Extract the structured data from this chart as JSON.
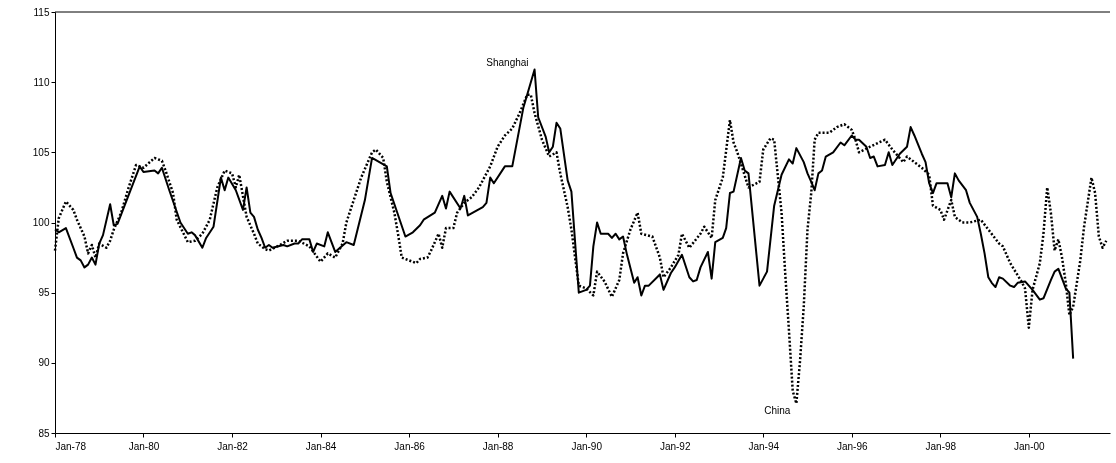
{
  "chart_data": {
    "type": "line",
    "marker": "none",
    "xlim": [
      "1978-01",
      "2001-11"
    ],
    "ylim": [
      85,
      115
    ],
    "yticks": [
      85,
      90,
      95,
      100,
      105,
      110,
      115
    ],
    "xticks": [
      {
        "value": "1978-01",
        "label": "Jan-78"
      },
      {
        "value": "1980-01",
        "label": "Jan-80"
      },
      {
        "value": "1982-01",
        "label": "Jan-82"
      },
      {
        "value": "1984-01",
        "label": "Jan-84"
      },
      {
        "value": "1986-01",
        "label": "Jan-86"
      },
      {
        "value": "1988-01",
        "label": "Jan-88"
      },
      {
        "value": "1990-01",
        "label": "Jan-90"
      },
      {
        "value": "1992-01",
        "label": "Jan-92"
      },
      {
        "value": "1994-01",
        "label": "Jan-94"
      },
      {
        "value": "1996-01",
        "label": "Jan-96"
      },
      {
        "value": "1998-01",
        "label": "Jan-98"
      },
      {
        "value": "2000-01",
        "label": "Jan-00"
      }
    ],
    "series": [
      {
        "name": "Shanghai",
        "color": "#000000",
        "line_style": "solid",
        "x": [
          "1978-01",
          "1978-02",
          "1978-04",
          "1978-06",
          "1978-07",
          "1978-08",
          "1978-09",
          "1978-10",
          "1978-11",
          "1978-12",
          "1979-01",
          "1979-02",
          "1979-04",
          "1979-05",
          "1979-06",
          "1979-12",
          "1980-01",
          "1980-04",
          "1980-05",
          "1980-06",
          "1980-08",
          "1980-11",
          "1981-01",
          "1981-02",
          "1981-03",
          "1981-05",
          "1981-06",
          "1981-08",
          "1981-10",
          "1981-11",
          "1981-12",
          "1982-02",
          "1982-04",
          "1982-05",
          "1982-06",
          "1982-07",
          "1982-08",
          "1982-09",
          "1982-10",
          "1982-11",
          "1982-12",
          "1983-03",
          "1983-04",
          "1983-06",
          "1983-07",
          "1983-08",
          "1983-10",
          "1983-11",
          "1983-12",
          "1984-02",
          "1984-03",
          "1984-05",
          "1984-08",
          "1984-10",
          "1985-01",
          "1985-03",
          "1985-07",
          "1985-08",
          "1985-12",
          "1986-02",
          "1986-04",
          "1986-05",
          "1986-08",
          "1986-10",
          "1986-11",
          "1986-12",
          "1987-03",
          "1987-04",
          "1987-05",
          "1987-09",
          "1987-10",
          "1987-11",
          "1987-12",
          "1988-03",
          "1988-05",
          "1988-08",
          "1988-09",
          "1988-11",
          "1988-12",
          "1989-02",
          "1989-03",
          "1989-04",
          "1989-05",
          "1989-06",
          "1989-08",
          "1989-09",
          "1989-11",
          "1990-01",
          "1990-02",
          "1990-03",
          "1990-04",
          "1990-05",
          "1990-07",
          "1990-08",
          "1990-09",
          "1990-10",
          "1990-11",
          "1990-12",
          "1991-02",
          "1991-03",
          "1991-04",
          "1991-05",
          "1991-06",
          "1991-09",
          "1991-10",
          "1991-12",
          "1992-01",
          "1992-03",
          "1992-05",
          "1992-06",
          "1992-07",
          "1992-08",
          "1992-10",
          "1992-11",
          "1992-12",
          "1993-02",
          "1993-03",
          "1993-04",
          "1993-05",
          "1993-07",
          "1993-08",
          "1993-09",
          "1993-12",
          "1994-02",
          "1994-04",
          "1994-06",
          "1994-08",
          "1994-09",
          "1994-10",
          "1994-12",
          "1995-01",
          "1995-02",
          "1995-03",
          "1995-04",
          "1995-05",
          "1995-06",
          "1995-08",
          "1995-10",
          "1995-11",
          "1996-01",
          "1996-02",
          "1996-03",
          "1996-05",
          "1996-06",
          "1996-07",
          "1996-08",
          "1996-10",
          "1996-11",
          "1996-12",
          "1997-02",
          "1997-04",
          "1997-05",
          "1997-06",
          "1997-08",
          "1997-09",
          "1997-10",
          "1997-11",
          "1997-12",
          "1998-03",
          "1998-04",
          "1998-05",
          "1998-06",
          "1998-08",
          "1998-09",
          "1998-11",
          "1998-12",
          "1999-01",
          "1999-02",
          "1999-03",
          "1999-04",
          "1999-05",
          "1999-06",
          "1999-08",
          "1999-09",
          "1999-10",
          "1999-12",
          "2000-02",
          "2000-04",
          "2000-05",
          "2000-07",
          "2000-08",
          "2000-09",
          "2000-11",
          "2000-12",
          "2001-01"
        ],
        "values": [
          99.5,
          99.3,
          99.6,
          98.2,
          97.5,
          97.3,
          96.8,
          97.0,
          97.5,
          97.0,
          98.5,
          99.1,
          101.3,
          99.8,
          99.9,
          104.0,
          103.6,
          103.7,
          103.5,
          103.9,
          102.3,
          100.0,
          99.2,
          99.3,
          99.1,
          98.2,
          98.9,
          99.7,
          103.2,
          102.3,
          103.2,
          102.3,
          100.9,
          102.5,
          100.7,
          100.4,
          99.5,
          98.9,
          98.2,
          98.4,
          98.2,
          98.4,
          98.3,
          98.5,
          98.5,
          98.8,
          98.8,
          97.9,
          98.5,
          98.3,
          99.3,
          97.9,
          98.6,
          98.4,
          101.6,
          104.6,
          104.0,
          102.1,
          99.0,
          99.3,
          99.8,
          100.2,
          100.7,
          101.9,
          101.0,
          102.2,
          101.0,
          101.9,
          100.5,
          101.1,
          101.4,
          103.2,
          102.8,
          104.0,
          104.0,
          108.2,
          109.1,
          110.9,
          107.5,
          106.1,
          105.0,
          105.4,
          107.1,
          106.7,
          103.0,
          102.2,
          95.0,
          95.2,
          95.5,
          98.3,
          100.0,
          99.2,
          99.2,
          98.9,
          99.2,
          98.8,
          99.0,
          97.8,
          95.7,
          96.1,
          94.8,
          95.5,
          95.5,
          96.3,
          95.2,
          96.4,
          96.8,
          97.7,
          96.1,
          95.8,
          95.9,
          96.8,
          97.9,
          96.0,
          98.6,
          98.9,
          99.6,
          102.1,
          102.2,
          104.6,
          103.7,
          103.5,
          95.5,
          96.5,
          101.2,
          103.4,
          104.5,
          104.2,
          105.3,
          104.3,
          103.5,
          102.9,
          102.3,
          103.5,
          103.7,
          104.7,
          105.0,
          105.7,
          105.5,
          106.2,
          105.9,
          105.9,
          105.4,
          104.6,
          104.7,
          104.0,
          104.1,
          105.0,
          104.1,
          104.9,
          105.4,
          106.8,
          106.2,
          104.9,
          104.3,
          102.8,
          102.1,
          102.8,
          102.8,
          101.8,
          103.5,
          103.0,
          102.3,
          101.4,
          100.4,
          99.2,
          97.8,
          96.1,
          95.7,
          95.4,
          96.1,
          96.0,
          95.5,
          95.4,
          95.7,
          95.8,
          95.2,
          94.5,
          94.6,
          95.9,
          96.5,
          96.7,
          95.3,
          95.0,
          90.3
        ]
      },
      {
        "name": "China",
        "color": "#000000",
        "line_style": "dotted",
        "x": [
          "1978-01",
          "1978-02",
          "1978-04",
          "1978-06",
          "1978-07",
          "1978-09",
          "1978-10",
          "1978-11",
          "1978-12",
          "1979-01",
          "1979-03",
          "1979-04",
          "1979-05",
          "1979-07",
          "1979-09",
          "1979-11",
          "1980-01",
          "1980-04",
          "1980-06",
          "1980-07",
          "1980-09",
          "1980-10",
          "1981-01",
          "1981-03",
          "1981-05",
          "1981-07",
          "1981-09",
          "1981-11",
          "1982-01",
          "1982-02",
          "1982-03",
          "1982-05",
          "1982-07",
          "1982-08",
          "1982-10",
          "1982-11",
          "1983-02",
          "1983-04",
          "1983-07",
          "1983-10",
          "1984-01",
          "1984-03",
          "1984-05",
          "1984-07",
          "1984-08",
          "1984-10",
          "1984-12",
          "1985-03",
          "1985-04",
          "1985-06",
          "1985-07",
          "1985-09",
          "1985-10",
          "1985-11",
          "1986-01",
          "1986-03",
          "1986-04",
          "1986-06",
          "1986-07",
          "1986-09",
          "1986-10",
          "1986-11",
          "1987-01",
          "1987-02",
          "1987-04",
          "1987-06",
          "1987-08",
          "1987-11",
          "1988-01",
          "1988-03",
          "1988-05",
          "1988-07",
          "1988-09",
          "1988-10",
          "1988-11",
          "1989-01",
          "1989-03",
          "1989-05",
          "1989-06",
          "1989-08",
          "1989-09",
          "1989-11",
          "1990-01",
          "1990-03",
          "1990-04",
          "1990-06",
          "1990-08",
          "1990-10",
          "1990-11",
          "1991-01",
          "1991-03",
          "1991-04",
          "1991-07",
          "1991-09",
          "1991-10",
          "1991-12",
          "1992-02",
          "1992-03",
          "1992-05",
          "1992-08",
          "1992-09",
          "1992-11",
          "1992-12",
          "1993-02",
          "1993-04",
          "1993-05",
          "1993-06",
          "1993-09",
          "1993-12",
          "1994-01",
          "1994-03",
          "1994-04",
          "1994-06",
          "1994-07",
          "1994-08",
          "1994-09",
          "1994-10",
          "1994-11",
          "1994-12",
          "1995-01",
          "1995-02",
          "1995-03",
          "1995-04",
          "1995-07",
          "1995-09",
          "1995-11",
          "1996-01",
          "1996-02",
          "1996-03",
          "1996-06",
          "1996-10",
          "1996-12",
          "1997-03",
          "1997-04",
          "1997-08",
          "1997-10",
          "1997-11",
          "1998-01",
          "1998-02",
          "1998-04",
          "1998-05",
          "1998-07",
          "1998-09",
          "1998-12",
          "1999-02",
          "1999-05",
          "1999-06",
          "1999-08",
          "1999-11",
          "1999-12",
          "2000-01",
          "2000-02",
          "2000-04",
          "2000-05",
          "2000-06",
          "2000-07",
          "2000-08",
          "2000-09",
          "2000-10",
          "2000-11",
          "2000-12",
          "2001-01",
          "2001-03",
          "2001-04",
          "2001-06",
          "2001-07",
          "2001-08",
          "2001-09",
          "2001-10"
        ],
        "values": [
          98.0,
          100.3,
          101.5,
          100.9,
          100.2,
          99.0,
          97.8,
          98.4,
          97.5,
          98.5,
          98.2,
          98.7,
          99.5,
          100.7,
          102.5,
          104.1,
          103.9,
          104.6,
          104.4,
          103.7,
          102.1,
          100.2,
          98.6,
          98.7,
          99.2,
          100.2,
          102.5,
          103.7,
          103.5,
          102.5,
          103.4,
          100.4,
          99.2,
          98.5,
          98.1,
          98.0,
          98.4,
          98.7,
          98.7,
          98.3,
          97.2,
          97.8,
          97.5,
          98.5,
          100.0,
          101.6,
          103.2,
          105.0,
          105.2,
          104.6,
          102.9,
          100.7,
          99.2,
          97.5,
          97.3,
          97.1,
          97.4,
          97.5,
          98.0,
          99.2,
          98.2,
          99.6,
          99.6,
          100.7,
          101.4,
          101.8,
          102.5,
          104.0,
          105.4,
          106.2,
          106.7,
          107.8,
          109.1,
          109.1,
          107.8,
          105.9,
          104.7,
          105.0,
          103.5,
          101.1,
          99.5,
          95.5,
          95.3,
          94.8,
          96.5,
          95.8,
          94.7,
          95.9,
          97.8,
          99.5,
          100.7,
          99.2,
          99.0,
          97.5,
          96.1,
          96.8,
          97.7,
          99.2,
          98.2,
          99.2,
          99.7,
          98.9,
          101.6,
          103.2,
          107.3,
          105.7,
          105.0,
          102.5,
          102.9,
          105.2,
          106.0,
          105.9,
          100.7,
          96.4,
          92.3,
          88.0,
          87.1,
          90.2,
          94.0,
          99.5,
          102.1,
          105.9,
          106.4,
          106.4,
          106.8,
          107.0,
          106.6,
          105.9,
          105.0,
          105.4,
          105.9,
          105.2,
          104.3,
          104.7,
          103.9,
          103.4,
          101.2,
          100.9,
          100.2,
          101.6,
          100.4,
          100.0,
          100.0,
          100.2,
          99.5,
          98.5,
          98.3,
          97.1,
          95.8,
          95.3,
          92.5,
          95.2,
          97.1,
          99.2,
          102.5,
          100.7,
          98.0,
          98.8,
          97.5,
          95.7,
          93.4,
          94.0,
          97.3,
          99.7,
          103.2,
          102.1,
          99.0,
          98.2,
          98.7
        ]
      }
    ]
  }
}
